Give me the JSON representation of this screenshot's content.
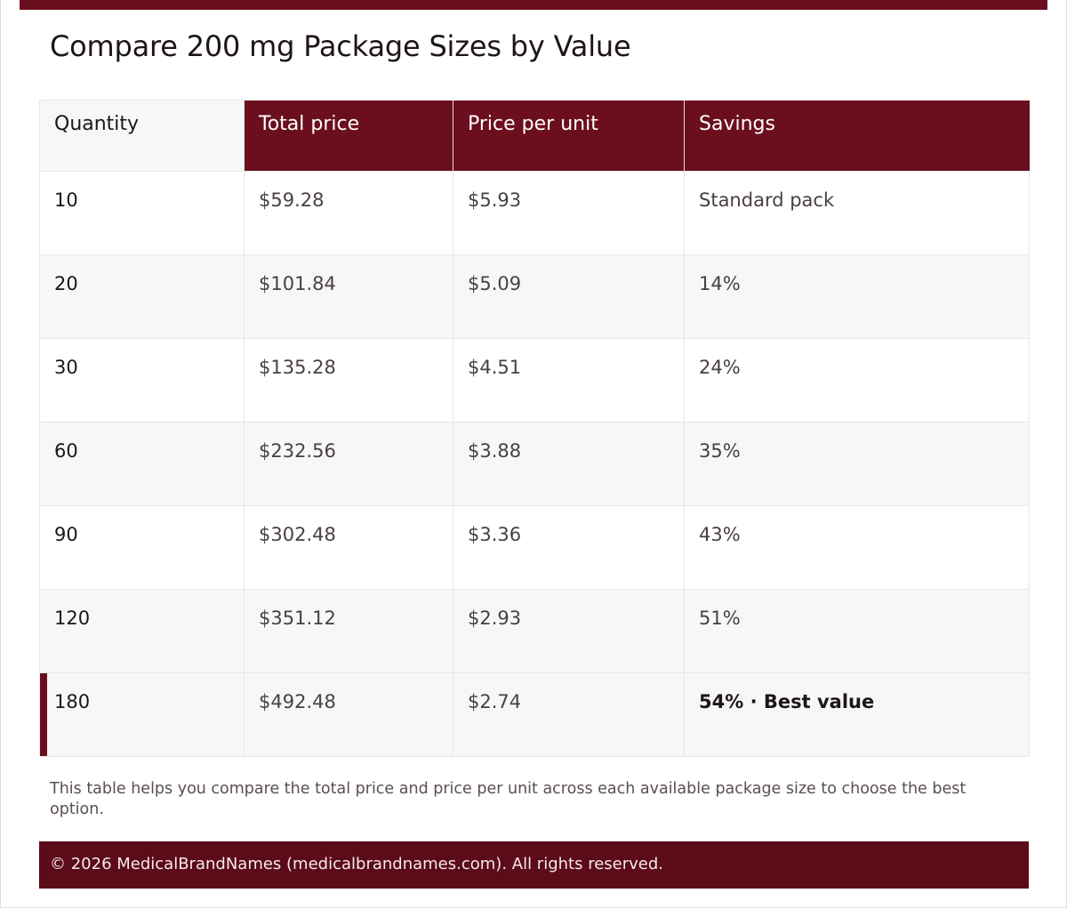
{
  "page": {
    "title": "Compare 200 mg Package Sizes by Value"
  },
  "table": {
    "headers": {
      "quantity": "Quantity",
      "total_price": "Total price",
      "price_per_unit": "Price per unit",
      "savings": "Savings"
    },
    "rows": [
      {
        "quantity": "10",
        "total_price": "$59.28",
        "price_per_unit": "$5.93",
        "savings": "Standard pack"
      },
      {
        "quantity": "20",
        "total_price": "$101.84",
        "price_per_unit": "$5.09",
        "savings": "14%"
      },
      {
        "quantity": "30",
        "total_price": "$135.28",
        "price_per_unit": "$4.51",
        "savings": "24%"
      },
      {
        "quantity": "60",
        "total_price": "$232.56",
        "price_per_unit": "$3.88",
        "savings": "35%"
      },
      {
        "quantity": "90",
        "total_price": "$302.48",
        "price_per_unit": "$3.36",
        "savings": "43%"
      },
      {
        "quantity": "120",
        "total_price": "$351.12",
        "price_per_unit": "$2.93",
        "savings": "51%"
      },
      {
        "quantity": "180",
        "total_price": "$492.48",
        "price_per_unit": "$2.74",
        "savings": "54% · Best value"
      }
    ]
  },
  "note": "This table helps you compare the total price and price per unit across each available package size to choose the best option.",
  "footer": {
    "copyright": "© 2026 MedicalBrandNames (medicalbrandnames.com). All rights reserved."
  },
  "colors": {
    "accent": "#6b0f1e",
    "footer_bg": "#5c0b18",
    "alt_row": "#f6f7f9"
  }
}
